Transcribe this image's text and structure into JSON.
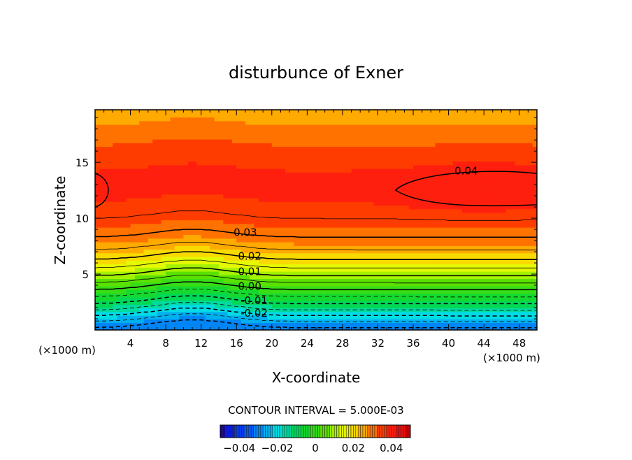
{
  "chart_data": {
    "type": "heatmap",
    "title": "disturbunce of Exner",
    "xlabel": "X-coordinate",
    "ylabel": "Z-coordinate",
    "x_unit": "(×1000 m)",
    "z_unit": "(×1000 m)",
    "xlim": [
      0,
      50
    ],
    "ylim": [
      0,
      19.7
    ],
    "x_ticks": [
      4,
      8,
      12,
      16,
      20,
      24,
      28,
      32,
      36,
      40,
      44,
      48
    ],
    "y_ticks": [
      5,
      10,
      15
    ],
    "contour_interval_text": "CONTOUR INTERVAL = 5.000E-03",
    "contour_labels": [
      {
        "text": "0.04",
        "x": 42,
        "z": 13.9
      },
      {
        "text": "0.03",
        "x": 17,
        "z": 8.4
      },
      {
        "text": "0.02",
        "x": 17.5,
        "z": 6.3
      },
      {
        "text": "0.01",
        "x": 17.5,
        "z": 4.9
      },
      {
        "text": "0.00",
        "x": 17.5,
        "z": 3.6
      },
      {
        "text": "-0.01",
        "x": 18,
        "z": 2.3
      },
      {
        "text": "-0.02",
        "x": 18,
        "z": 1.2
      }
    ],
    "colorbar": {
      "range": [
        -0.05,
        0.05
      ],
      "tick_values": [
        -0.04,
        -0.02,
        0,
        0.02,
        0.04
      ],
      "tick_labels": [
        "−0.04",
        "−0.02",
        "0",
        "0.02",
        "0.04"
      ]
    },
    "field_profile": {
      "z": [
        0,
        1,
        2,
        3,
        4,
        5,
        6,
        7,
        8,
        9,
        10,
        11,
        12,
        13,
        14,
        15,
        16,
        17,
        18,
        19.7
      ],
      "value": [
        -0.032,
        -0.023,
        -0.013,
        -0.005,
        0.003,
        0.011,
        0.018,
        0.024,
        0.029,
        0.032,
        0.035,
        0.037,
        0.038,
        0.039,
        0.038,
        0.036,
        0.034,
        0.031,
        0.028,
        0.025
      ]
    }
  }
}
